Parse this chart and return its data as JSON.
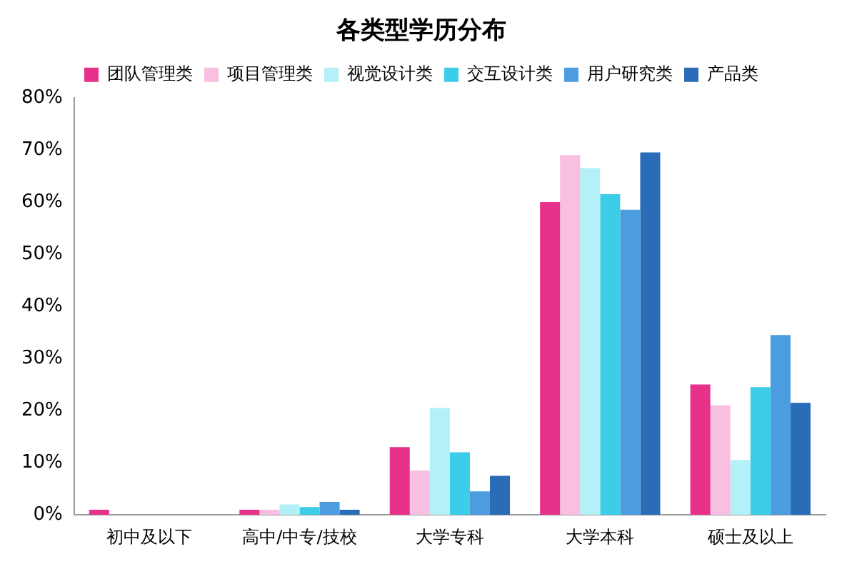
{
  "chart_data": {
    "type": "bar",
    "title": "各类型学历分布",
    "categories": [
      "初中及以下",
      "高中/中专/技校",
      "大学专科",
      "大学本科",
      "硕士及以上"
    ],
    "series": [
      {
        "name": "团队管理类",
        "color": "#e8318a",
        "values": [
          1,
          1,
          13,
          60,
          25
        ]
      },
      {
        "name": "项目管理类",
        "color": "#f9bfe0",
        "values": [
          0,
          1,
          8.5,
          69,
          21
        ]
      },
      {
        "name": "视觉设计类",
        "color": "#b3f0f8",
        "values": [
          0,
          2,
          20.5,
          66.5,
          10.5
        ]
      },
      {
        "name": "交互设计类",
        "color": "#3ccde8",
        "values": [
          0,
          1.5,
          12,
          61.5,
          24.5
        ]
      },
      {
        "name": "用户研究类",
        "color": "#4c9de0",
        "values": [
          0,
          2.5,
          4.5,
          58.5,
          34.5
        ]
      },
      {
        "name": "产品类",
        "color": "#2b6cb8",
        "values": [
          0,
          1,
          7.5,
          69.5,
          21.5
        ]
      }
    ],
    "ylim": [
      0,
      80
    ],
    "yticks": [
      {
        "value": 0,
        "label": "0%"
      },
      {
        "value": 10,
        "label": "10%"
      },
      {
        "value": 20,
        "label": "20%"
      },
      {
        "value": 30,
        "label": "30%"
      },
      {
        "value": 40,
        "label": "40%"
      },
      {
        "value": 50,
        "label": "50%"
      },
      {
        "value": 60,
        "label": "60%"
      },
      {
        "value": 70,
        "label": "70%"
      },
      {
        "value": 80,
        "label": "80%"
      }
    ],
    "grid": false,
    "legend": "top"
  }
}
